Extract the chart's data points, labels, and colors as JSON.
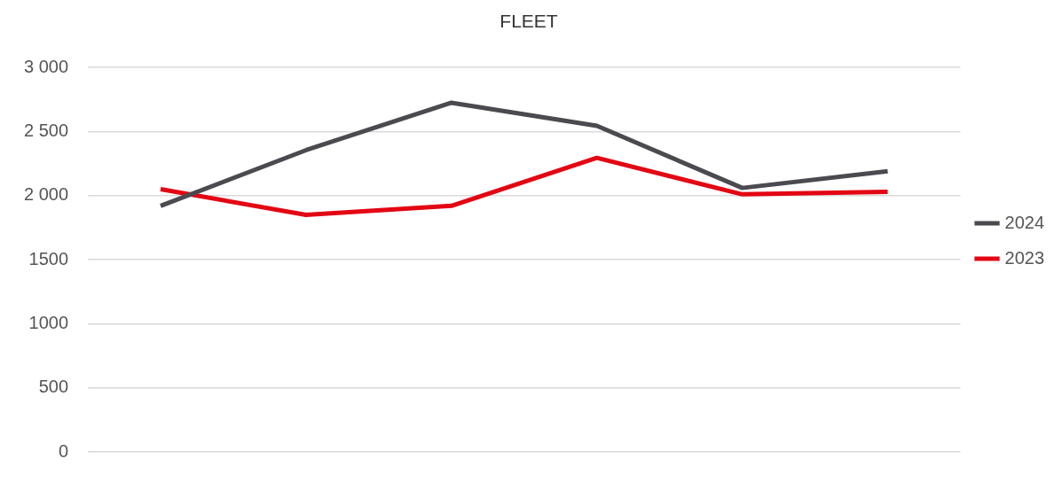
{
  "chart_data": {
    "type": "line",
    "title": "FLEET",
    "categories": [
      null,
      null,
      null,
      null,
      null,
      null
    ],
    "series": [
      {
        "name": "2024",
        "color": "#4a4a50",
        "values": [
          1920,
          2355,
          2725,
          2545,
          2060,
          2190
        ]
      },
      {
        "name": "2023",
        "color": "#e30613",
        "values": [
          2050,
          1850,
          1920,
          2295,
          2010,
          2030
        ]
      }
    ],
    "ylim": [
      0,
      3000
    ],
    "yticks": [
      0,
      500,
      {
        "value": 1000,
        "label": "1000"
      },
      {
        "value": 1500,
        "label": "1500"
      },
      {
        "value": 2000,
        "label": "2 000"
      },
      {
        "value": 2500,
        "label": "2 500"
      },
      {
        "value": 3000,
        "label": "3 000"
      }
    ],
    "grid": "y",
    "legend": "right",
    "marker": "none",
    "line_style": "solid"
  }
}
